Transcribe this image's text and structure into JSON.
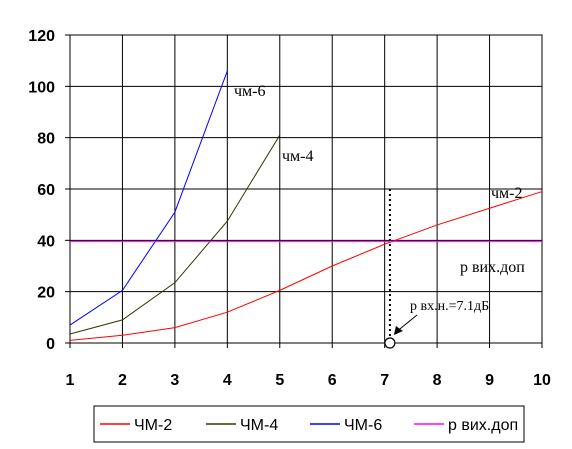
{
  "chart_data": {
    "type": "line",
    "title": "",
    "xlabel": "",
    "ylabel": "",
    "xlim": [
      1,
      10
    ],
    "ylim": [
      0,
      120
    ],
    "x_ticks": [
      "1",
      "2",
      "3",
      "4",
      "5",
      "6",
      "7",
      "8",
      "9",
      "10"
    ],
    "y_ticks": [
      "0",
      "20",
      "40",
      "60",
      "80",
      "100",
      "120"
    ],
    "grid": true,
    "legend_position": "bottom",
    "series": [
      {
        "name": "ЧМ-2",
        "color": "#ff0000",
        "x": [
          1,
          2,
          3,
          4,
          5,
          6,
          7,
          8,
          9,
          10
        ],
        "y": [
          1,
          3,
          6,
          12,
          20.5,
          30,
          38.5,
          46,
          52.5,
          59
        ]
      },
      {
        "name": "ЧМ-4",
        "color": "#333300",
        "x": [
          1,
          2,
          3,
          4,
          5
        ],
        "y": [
          3.5,
          9,
          23.5,
          47.5,
          81
        ]
      },
      {
        "name": "ЧМ-6",
        "color": "#0000ff",
        "x": [
          1,
          2,
          3,
          4
        ],
        "y": [
          7,
          20.5,
          51,
          106
        ]
      },
      {
        "name": "р вих.доп",
        "color": "#ff00ff",
        "x": [
          1,
          10
        ],
        "y": [
          39.5,
          39.5
        ]
      }
    ],
    "annotations": {
      "cm6": "чм-6",
      "cm4": "чм-4",
      "cm2": "чм-2",
      "p_out": "р вих.доп",
      "p_in": "р вх.н.=7.1дБ"
    },
    "marker": {
      "x": 7.1,
      "y": 0,
      "vline_to_y": 60
    }
  }
}
